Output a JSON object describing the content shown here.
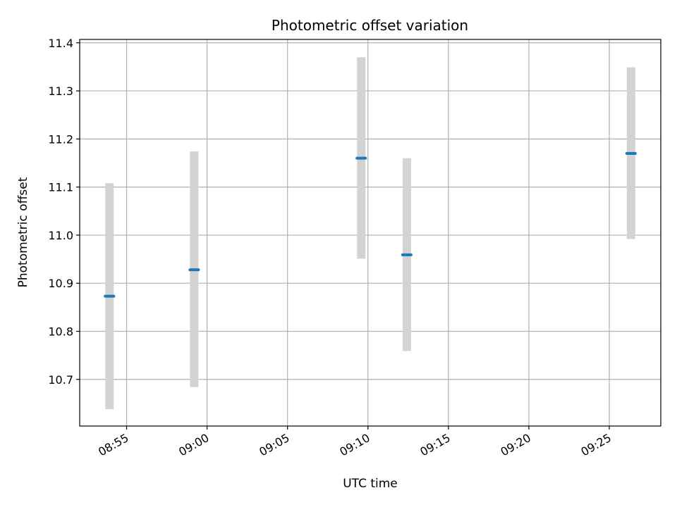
{
  "chart_data": {
    "type": "scatter",
    "title": "Photometric offset variation",
    "xlabel": "UTC time",
    "ylabel": "Photometric offset",
    "x_tick_labels": [
      "08:55",
      "09:00",
      "09:05",
      "09:10",
      "09:15",
      "09:20",
      "09:25"
    ],
    "x_tick_minutes": [
      0,
      5,
      10,
      15,
      20,
      25,
      30
    ],
    "y_ticks": [
      10.7,
      10.8,
      10.9,
      11.0,
      11.1,
      11.2,
      11.3,
      11.4
    ],
    "x_range": [
      "08:52:05",
      "09:28:12"
    ],
    "ylim": [
      10.603,
      11.407
    ],
    "grid": true,
    "errorbar_color": "#d3d3d3",
    "point_color": "#1f77b4",
    "points": [
      {
        "time": "08:53:56",
        "value": 10.873,
        "yerr_low": 10.638,
        "yerr_high": 11.108
      },
      {
        "time": "08:59:12",
        "value": 10.928,
        "yerr_low": 10.684,
        "yerr_high": 11.174
      },
      {
        "time": "09:09:35",
        "value": 11.16,
        "yerr_low": 10.951,
        "yerr_high": 11.37
      },
      {
        "time": "09:12:25",
        "value": 10.959,
        "yerr_low": 10.759,
        "yerr_high": 11.16
      },
      {
        "time": "09:26:21",
        "value": 11.17,
        "yerr_low": 10.992,
        "yerr_high": 11.349
      }
    ]
  }
}
